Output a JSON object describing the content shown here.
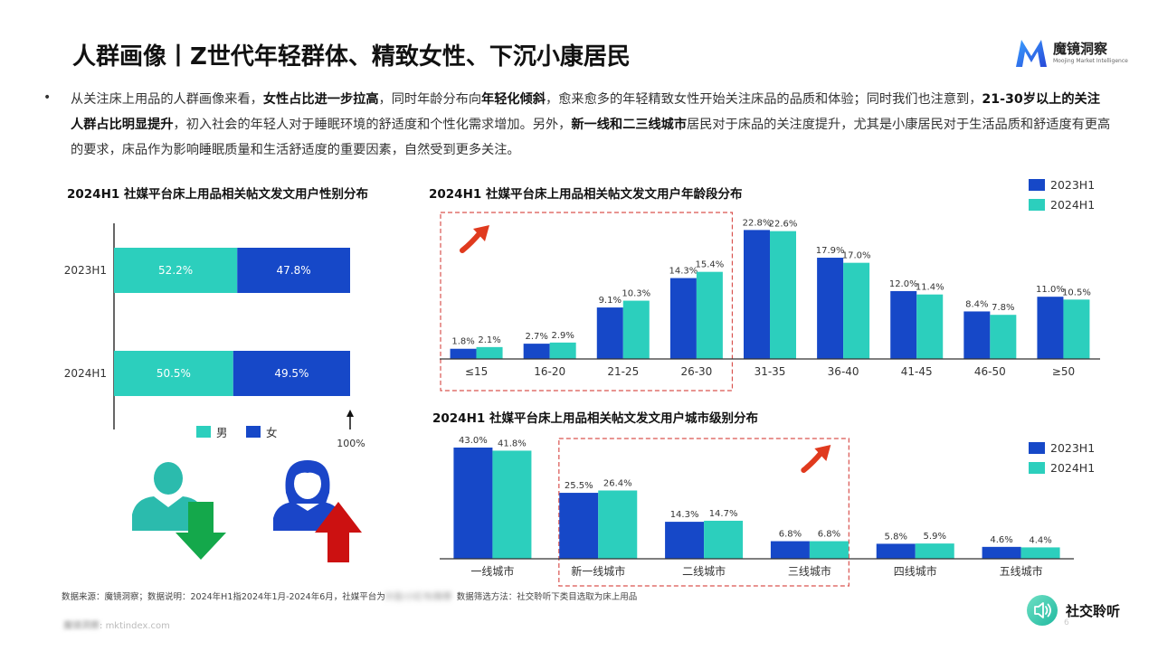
{
  "header": {
    "title": "人群画像丨Z世代年轻群体、精致女性、下沉小康居民",
    "brand": "魔镜洞察",
    "brand_sub": "Moojing Market Intelligence"
  },
  "summary": {
    "p1": "从关注床上用品的人群画像来看，",
    "b1": "女性占比进一步拉高",
    "p2": "，同时年龄分布向",
    "b2": "年轻化倾斜",
    "p3": "，愈来愈多的年轻精致女性开始关注床品的品质和体验；同时我们也注意到，",
    "b3": "21-30岁以上的关注人群占比明显提升",
    "p4": "，初入社会的年轻人对于睡眠环境的舒适度和个性化需求增加。另外，",
    "b4": "新一线和二三线城市",
    "p5": "居民对于床品的关注度提升，尤其是小康居民对于生活品质和舒适度有更高的要求，床品作为影响睡眠质量和生活舒适度的重要因素，自然受到更多关注。"
  },
  "colors": {
    "series_2023": "#1648c8",
    "series_2024": "#2ccfbd",
    "highlight_box": "#d9534f",
    "arrow_red": "#e03a1e",
    "person_teal": "#2bbbad",
    "person_blue": "#1a45c8",
    "arrow_down": "#14a84b",
    "arrow_up": "#cc1111"
  },
  "icons": [
    "male-user-icon",
    "female-user-icon",
    "down-arrow-icon",
    "up-arrow-icon",
    "trend-up-arrow-icon",
    "social-listening-icon"
  ],
  "chart_data": [
    {
      "type": "bar",
      "orientation": "horizontal-stacked-100",
      "title": "2024H1 社媒平台床上用品相关帖文发文用户性别分布",
      "categories": [
        "2023H1",
        "2024H1"
      ],
      "series": [
        {
          "name": "男",
          "values": [
            52.2,
            50.5
          ],
          "labels": [
            "52.2%",
            "50.5%"
          ]
        },
        {
          "name": "女",
          "values": [
            47.8,
            49.5
          ],
          "labels": [
            "47.8%",
            "49.5%"
          ]
        }
      ],
      "axis_end_label": "100%",
      "legend": "bottom"
    },
    {
      "type": "bar",
      "title": "2024H1 社媒平台床上用品相关帖文发文用户年龄段分布",
      "categories": [
        "≤15",
        "16-20",
        "21-25",
        "26-30",
        "31-35",
        "36-40",
        "41-45",
        "46-50",
        "≥50"
      ],
      "series": [
        {
          "name": "2023H1",
          "values": [
            1.8,
            2.7,
            9.1,
            14.3,
            22.8,
            17.9,
            12.0,
            8.4,
            11.0
          ],
          "labels": [
            "1.8%",
            "2.7%",
            "9.1%",
            "14.3%",
            "22.8%",
            "17.9%",
            "12.0%",
            "8.4%",
            "11.0%"
          ]
        },
        {
          "name": "2024H1",
          "values": [
            2.1,
            2.9,
            10.3,
            15.4,
            22.6,
            17.0,
            11.4,
            7.8,
            10.5
          ],
          "labels": [
            "2.1%",
            "2.9%",
            "10.3%",
            "15.4%",
            "22.6%",
            "17.0%",
            "11.4%",
            "7.8%",
            "10.5%"
          ]
        }
      ],
      "highlight_categories": [
        "≤15",
        "16-20",
        "21-25",
        "26-30"
      ],
      "legend": "top-right"
    },
    {
      "type": "bar",
      "title": "2024H1 社媒平台床上用品相关帖文发文用户城市级别分布",
      "categories": [
        "一线城市",
        "新一线城市",
        "二线城市",
        "三线城市",
        "四线城市",
        "五线城市"
      ],
      "series": [
        {
          "name": "2023H1",
          "values": [
            43.0,
            25.5,
            14.3,
            6.8,
            5.8,
            4.6
          ],
          "labels": [
            "43.0%",
            "25.5%",
            "14.3%",
            "6.8%",
            "5.8%",
            "4.6%"
          ]
        },
        {
          "name": "2024H1",
          "values": [
            41.8,
            26.4,
            14.7,
            6.8,
            5.9,
            4.4
          ],
          "labels": [
            "41.8%",
            "26.4%",
            "14.7%",
            "6.8%",
            "5.9%",
            "4.4%"
          ]
        }
      ],
      "highlight_categories": [
        "新一线城市",
        "二线城市",
        "三线城市"
      ],
      "legend": "right"
    }
  ],
  "footer": {
    "source_a": "数据来源：魔镜洞察；数据说明：2024年H1指2024年1月-2024年6月，社媒平台为",
    "source_blur": "抖音/小红书/微博",
    "source_b": "数据筛选方法：社交聆听下类目选取为床上用品",
    "url_blur": "魔镜洞察",
    "url": "mktindex.com",
    "badge": "社交聆听",
    "page": "6"
  }
}
